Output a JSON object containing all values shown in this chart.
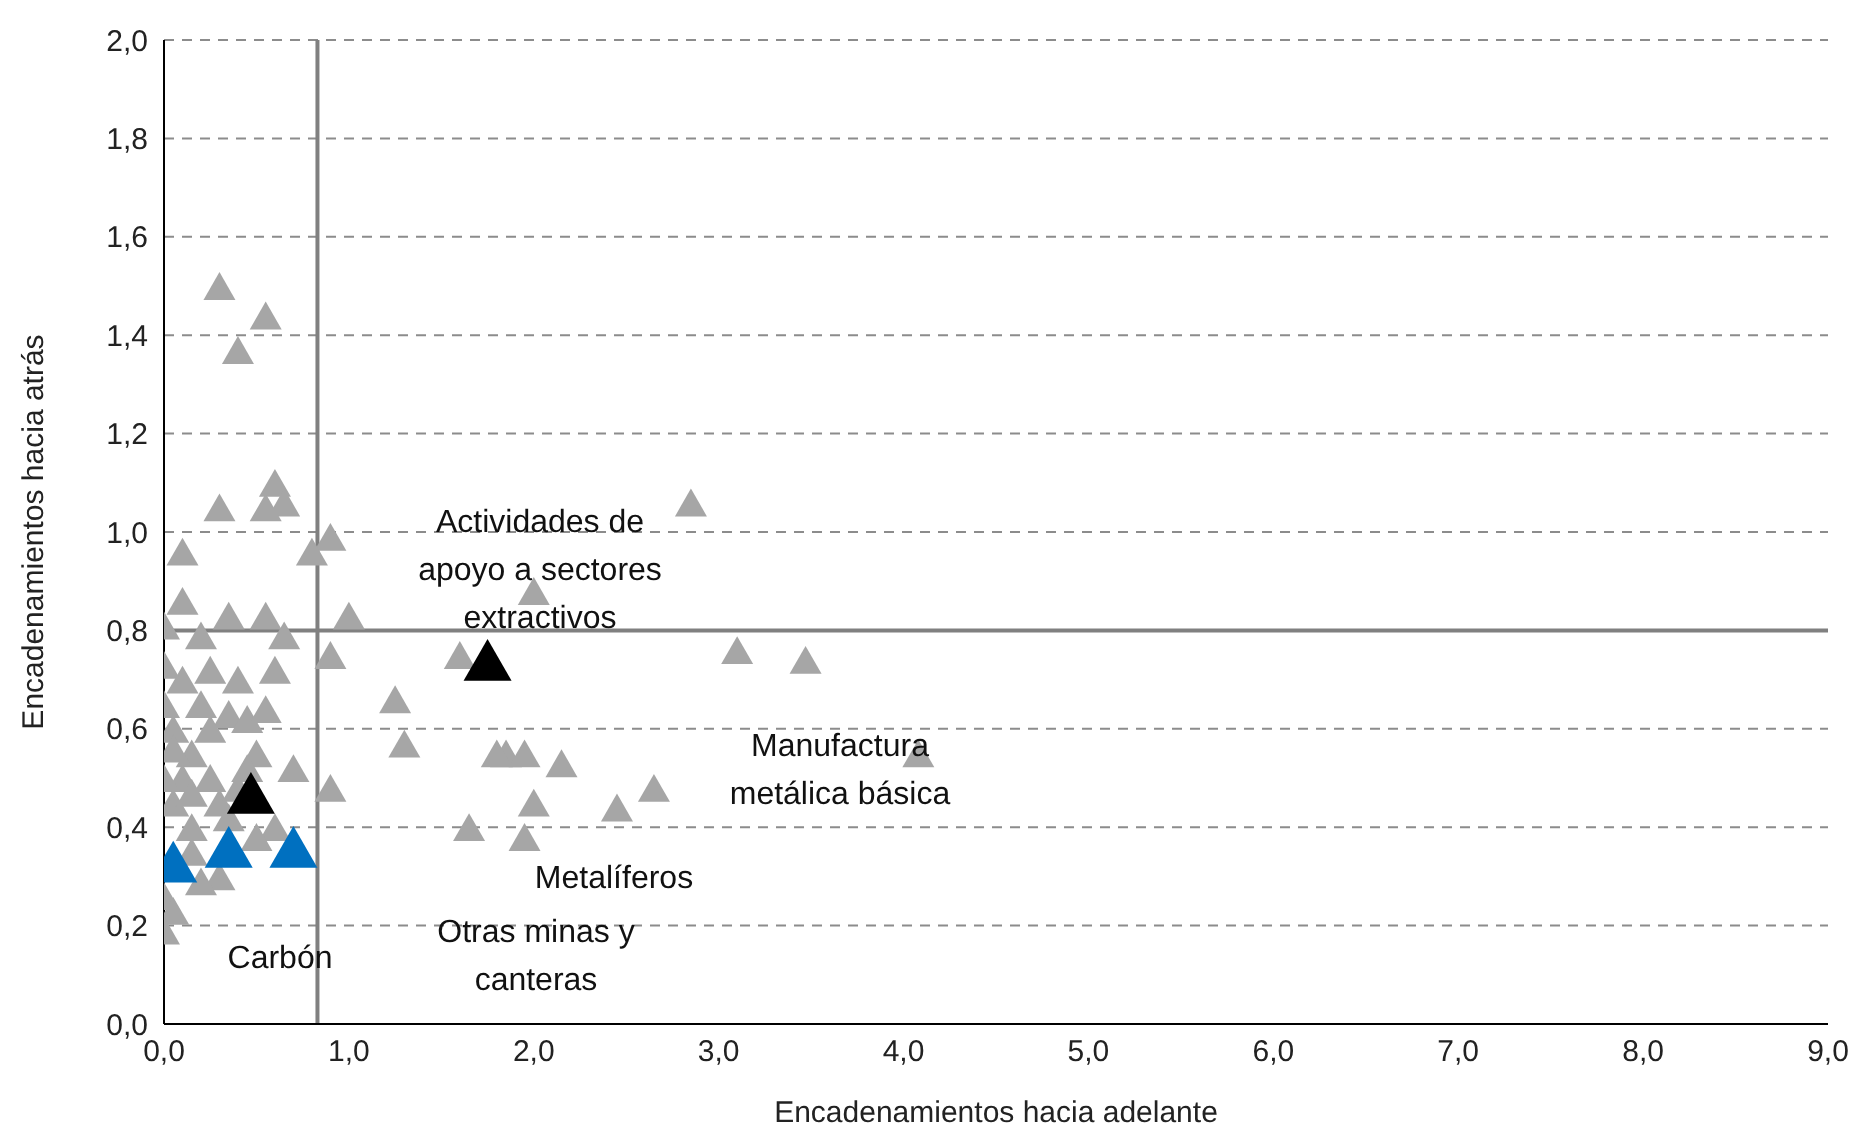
{
  "chart_data": {
    "type": "scatter",
    "xlabel": "Encadenamientos hacia adelante",
    "ylabel": "Encadenamientos hacia atrás",
    "xlim": [
      0,
      9
    ],
    "xticks": [
      {
        "value": 0,
        "label": "0,0"
      },
      {
        "value": 1,
        "label": "1,0"
      },
      {
        "value": 2,
        "label": "2,0"
      },
      {
        "value": 3,
        "label": "3,0"
      },
      {
        "value": 4,
        "label": "4,0"
      },
      {
        "value": 5,
        "label": "5,0"
      },
      {
        "value": 6,
        "label": "6,0"
      },
      {
        "value": 7,
        "label": "7,0"
      },
      {
        "value": 8,
        "label": "8,0"
      },
      {
        "value": 9,
        "label": "9,0"
      }
    ],
    "ylim": [
      0,
      2
    ],
    "yticks": [
      {
        "value": 0,
        "label": "0,0"
      },
      {
        "value": 0.2,
        "label": "0,2"
      },
      {
        "value": 0.4,
        "label": "0,4"
      },
      {
        "value": 0.6,
        "label": "0,6"
      },
      {
        "value": 0.8,
        "label": "0,8"
      },
      {
        "value": 1,
        "label": "1,0"
      },
      {
        "value": 1.2,
        "label": "1,2"
      },
      {
        "value": 1.4,
        "label": "1,4"
      },
      {
        "value": 1.6,
        "label": "1,6"
      },
      {
        "value": 1.8,
        "label": "1,8"
      },
      {
        "value": 2,
        "label": "2,0"
      }
    ],
    "grid": "y",
    "legend": false,
    "marker": "triangle",
    "series": [
      {
        "color": "#a6a6a6",
        "x": [
          0.3,
          0.55,
          0.4,
          0.6,
          0.65,
          0.3,
          0.55,
          0.9,
          0.8,
          0.1,
          2.85,
          2.0,
          1.0,
          0.35,
          0.1,
          0.55,
          0.9,
          0.65,
          0.0,
          0.2,
          1.6,
          3.1,
          3.47,
          1.25,
          1.3,
          1.85,
          1.95,
          1.8,
          2.15,
          2.65,
          4.08,
          2.0,
          2.45,
          1.65,
          1.95,
          0.9,
          0.7,
          0.5,
          0.05,
          0.15,
          0.25,
          0.3,
          0.1,
          0.2,
          0.35,
          0.45,
          0.55,
          0.6,
          0.4,
          0.25,
          0.1,
          0.0,
          0.0,
          0.05,
          0.0,
          0.15,
          0.3,
          0.2,
          0.0,
          0.05,
          0.0,
          0.6,
          0.5,
          0.35,
          0.15,
          0.05,
          0.25,
          0.45,
          0.15,
          0.4
        ],
        "values": [
          1.5,
          1.44,
          1.37,
          1.1,
          1.06,
          1.05,
          1.05,
          0.99,
          0.96,
          0.96,
          1.06,
          0.88,
          0.83,
          0.83,
          0.86,
          0.83,
          0.75,
          0.79,
          0.81,
          0.79,
          0.75,
          0.76,
          0.74,
          0.66,
          0.57,
          0.55,
          0.55,
          0.55,
          0.53,
          0.48,
          0.55,
          0.45,
          0.44,
          0.4,
          0.38,
          0.48,
          0.52,
          0.55,
          0.6,
          0.55,
          0.5,
          0.45,
          0.5,
          0.65,
          0.63,
          0.62,
          0.64,
          0.72,
          0.7,
          0.72,
          0.7,
          0.73,
          0.65,
          0.45,
          0.5,
          0.4,
          0.3,
          0.29,
          0.26,
          0.23,
          0.19,
          0.4,
          0.38,
          0.42,
          0.35,
          0.56,
          0.6,
          0.52,
          0.47,
          0.48
        ]
      },
      {
        "color": "#000000",
        "x": [
          0.47,
          1.75
        ],
        "values": [
          0.47,
          0.74
        ]
      },
      {
        "color": "#0070c0",
        "x": [
          0.05,
          0.35,
          0.7
        ],
        "values": [
          0.33,
          0.36,
          0.36
        ]
      }
    ],
    "ref_lines": [
      {
        "axis": "x",
        "value": 0.83,
        "color": "#808080"
      },
      {
        "axis": "y",
        "value": 0.8,
        "color": "#808080"
      }
    ],
    "annotations": [
      "Actividades de\napoyo a sectores\nextractivos",
      "Manufactura\nmetálica básica",
      "Metalíferos",
      "Otras minas y\ncanteras",
      "Carbón"
    ]
  }
}
